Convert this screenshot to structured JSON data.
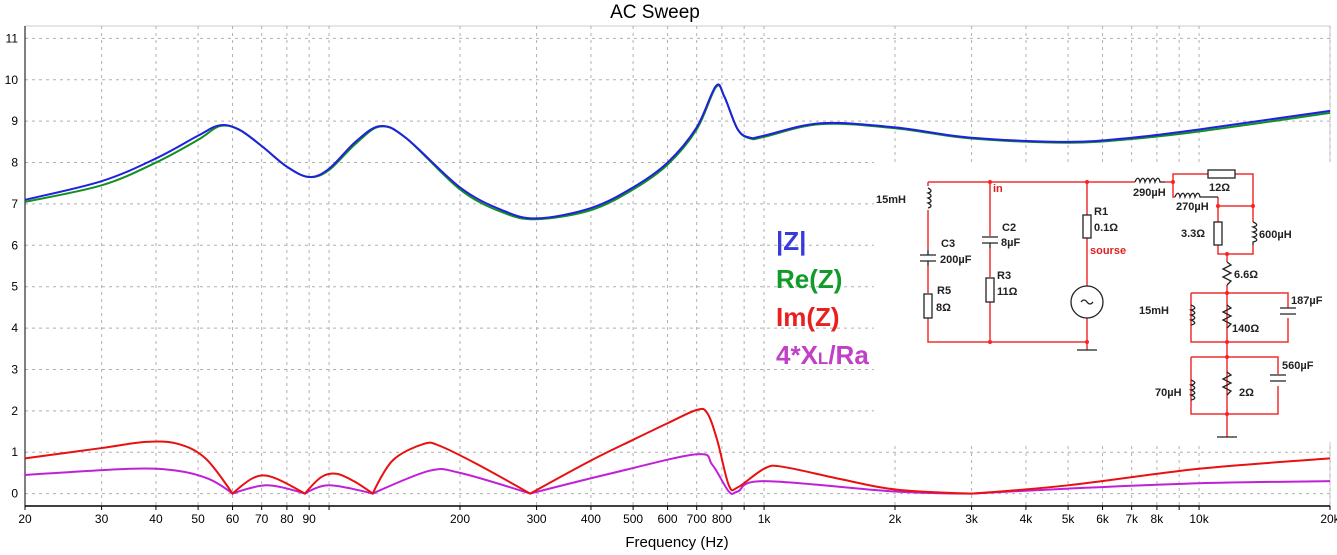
{
  "chart_data": {
    "type": "line",
    "title": "AC Sweep",
    "xlabel": "Frequency (Hz)",
    "ylabel": "",
    "xscale": "log",
    "xlim": [
      20,
      20000
    ],
    "ylim": [
      -0.3,
      11.3
    ],
    "grid": true,
    "x_ticks": [
      {
        "v": 20,
        "label": "20"
      },
      {
        "v": 30,
        "label": "30"
      },
      {
        "v": 40,
        "label": "40"
      },
      {
        "v": 50,
        "label": "50"
      },
      {
        "v": 60,
        "label": "60"
      },
      {
        "v": 70,
        "label": "70"
      },
      {
        "v": 80,
        "label": "80"
      },
      {
        "v": 90,
        "label": "90"
      },
      {
        "v": 100,
        "label": ""
      },
      {
        "v": 200,
        "label": "200"
      },
      {
        "v": 300,
        "label": "300"
      },
      {
        "v": 400,
        "label": "400"
      },
      {
        "v": 500,
        "label": "500"
      },
      {
        "v": 600,
        "label": "600"
      },
      {
        "v": 700,
        "label": "700"
      },
      {
        "v": 800,
        "label": "800"
      },
      {
        "v": 900,
        "label": ""
      },
      {
        "v": 1000,
        "label": "1k"
      },
      {
        "v": 2000,
        "label": "2k"
      },
      {
        "v": 3000,
        "label": "3k"
      },
      {
        "v": 4000,
        "label": "4k"
      },
      {
        "v": 5000,
        "label": "5k"
      },
      {
        "v": 6000,
        "label": "6k"
      },
      {
        "v": 7000,
        "label": "7k"
      },
      {
        "v": 8000,
        "label": "8k"
      },
      {
        "v": 9000,
        "label": ""
      },
      {
        "v": 10000,
        "label": "10k"
      },
      {
        "v": 20000,
        "label": "20k"
      }
    ],
    "y_ticks": [
      "0",
      "1",
      "2",
      "3",
      "4",
      "5",
      "6",
      "7",
      "8",
      "9",
      "10",
      "11"
    ],
    "series": [
      {
        "name": "|Z|",
        "color": "#2020e0",
        "points": [
          [
            20,
            7.1
          ],
          [
            30,
            7.55
          ],
          [
            40,
            8.1
          ],
          [
            50,
            8.65
          ],
          [
            56,
            8.9
          ],
          [
            62,
            8.8
          ],
          [
            70,
            8.4
          ],
          [
            80,
            7.9
          ],
          [
            90,
            7.65
          ],
          [
            100,
            7.85
          ],
          [
            115,
            8.5
          ],
          [
            131,
            8.88
          ],
          [
            150,
            8.6
          ],
          [
            200,
            7.4
          ],
          [
            250,
            6.85
          ],
          [
            300,
            6.65
          ],
          [
            400,
            6.9
          ],
          [
            500,
            7.4
          ],
          [
            600,
            8.0
          ],
          [
            700,
            8.85
          ],
          [
            775,
            9.85
          ],
          [
            810,
            9.6
          ],
          [
            870,
            8.8
          ],
          [
            930,
            8.6
          ],
          [
            1000,
            8.65
          ],
          [
            1350,
            8.95
          ],
          [
            2000,
            8.85
          ],
          [
            3000,
            8.6
          ],
          [
            5000,
            8.5
          ],
          [
            7000,
            8.6
          ],
          [
            10000,
            8.8
          ],
          [
            20000,
            9.25
          ]
        ]
      },
      {
        "name": "Re(Z)",
        "color": "#109020",
        "points": [
          [
            20,
            7.05
          ],
          [
            30,
            7.45
          ],
          [
            40,
            8.0
          ],
          [
            50,
            8.55
          ],
          [
            56,
            8.88
          ],
          [
            62,
            8.8
          ],
          [
            70,
            8.4
          ],
          [
            80,
            7.9
          ],
          [
            90,
            7.65
          ],
          [
            100,
            7.82
          ],
          [
            115,
            8.45
          ],
          [
            131,
            8.87
          ],
          [
            150,
            8.6
          ],
          [
            200,
            7.35
          ],
          [
            250,
            6.8
          ],
          [
            300,
            6.63
          ],
          [
            400,
            6.85
          ],
          [
            500,
            7.35
          ],
          [
            600,
            7.95
          ],
          [
            700,
            8.8
          ],
          [
            775,
            9.82
          ],
          [
            810,
            9.6
          ],
          [
            870,
            8.8
          ],
          [
            930,
            8.58
          ],
          [
            1000,
            8.62
          ],
          [
            1350,
            8.93
          ],
          [
            2000,
            8.83
          ],
          [
            3000,
            8.58
          ],
          [
            5000,
            8.48
          ],
          [
            7000,
            8.57
          ],
          [
            10000,
            8.75
          ],
          [
            20000,
            9.2
          ]
        ]
      },
      {
        "name": "Im(Z)",
        "color": "#e81010",
        "points": [
          [
            20,
            0.85
          ],
          [
            30,
            1.1
          ],
          [
            38,
            1.25
          ],
          [
            45,
            1.2
          ],
          [
            52,
            0.85
          ],
          [
            60,
            0
          ],
          [
            67,
            0.38
          ],
          [
            74,
            0.4
          ],
          [
            88,
            0
          ],
          [
            96,
            0.4
          ],
          [
            104,
            0.48
          ],
          [
            114,
            0.3
          ],
          [
            126,
            0
          ],
          [
            140,
            0.8
          ],
          [
            165,
            1.2
          ],
          [
            180,
            1.15
          ],
          [
            220,
            0.7
          ],
          [
            290,
            0
          ],
          [
            400,
            0.8
          ],
          [
            500,
            1.3
          ],
          [
            600,
            1.7
          ],
          [
            700,
            2.02
          ],
          [
            740,
            1.95
          ],
          [
            780,
            1.3
          ],
          [
            830,
            0.2
          ],
          [
            870,
            0.15
          ],
          [
            1000,
            0.6
          ],
          [
            1100,
            0.65
          ],
          [
            1500,
            0.35
          ],
          [
            2000,
            0.1
          ],
          [
            3000,
            0
          ],
          [
            5000,
            0.2
          ],
          [
            10000,
            0.6
          ],
          [
            20000,
            0.85
          ]
        ]
      },
      {
        "name": "4*XL/Ra",
        "color": "#c020d8",
        "points": [
          [
            20,
            0.45
          ],
          [
            35,
            0.6
          ],
          [
            45,
            0.55
          ],
          [
            53,
            0.35
          ],
          [
            60,
            0
          ],
          [
            72,
            0.2
          ],
          [
            88,
            0
          ],
          [
            100,
            0.2
          ],
          [
            126,
            0
          ],
          [
            170,
            0.55
          ],
          [
            200,
            0.5
          ],
          [
            290,
            0
          ],
          [
            450,
            0.5
          ],
          [
            700,
            0.95
          ],
          [
            760,
            0.7
          ],
          [
            830,
            0.05
          ],
          [
            870,
            0.05
          ],
          [
            1000,
            0.3
          ],
          [
            2000,
            0.05
          ],
          [
            3000,
            0
          ],
          [
            5000,
            0.12
          ],
          [
            10000,
            0.25
          ],
          [
            20000,
            0.3
          ]
        ]
      }
    ],
    "legend": {
      "placement": "center-right",
      "items": [
        {
          "text": "|Z|",
          "color": "#3a3adc"
        },
        {
          "text": "Re(Z)",
          "color": "#129a2a"
        },
        {
          "text": "Im(Z)",
          "color": "#e82020"
        },
        {
          "text": "4*X",
          "sub": "L",
          "tail": "/Ra",
          "color": "#c040c8"
        }
      ]
    }
  },
  "schematic": {
    "labels": {
      "l1": "15mH",
      "c3": "C3",
      "c3v": "200µF",
      "r5": "R5",
      "r5v": "8Ω",
      "in": "in",
      "c2": "C2",
      "c2v": "8µF",
      "r3": "R3",
      "r3v": "11Ω",
      "r1": "R1",
      "r1v": "0.1Ω",
      "src": "sourse",
      "l290": "290µH",
      "r12": "12Ω",
      "l270": "270µH",
      "r33": "3.3Ω",
      "l600": "600µH",
      "r66": "6.6Ω",
      "l15": "15mH",
      "r140": "140Ω",
      "c187": "187µF",
      "l70": "70µH",
      "r2": "2Ω",
      "c560": "560µF"
    }
  }
}
